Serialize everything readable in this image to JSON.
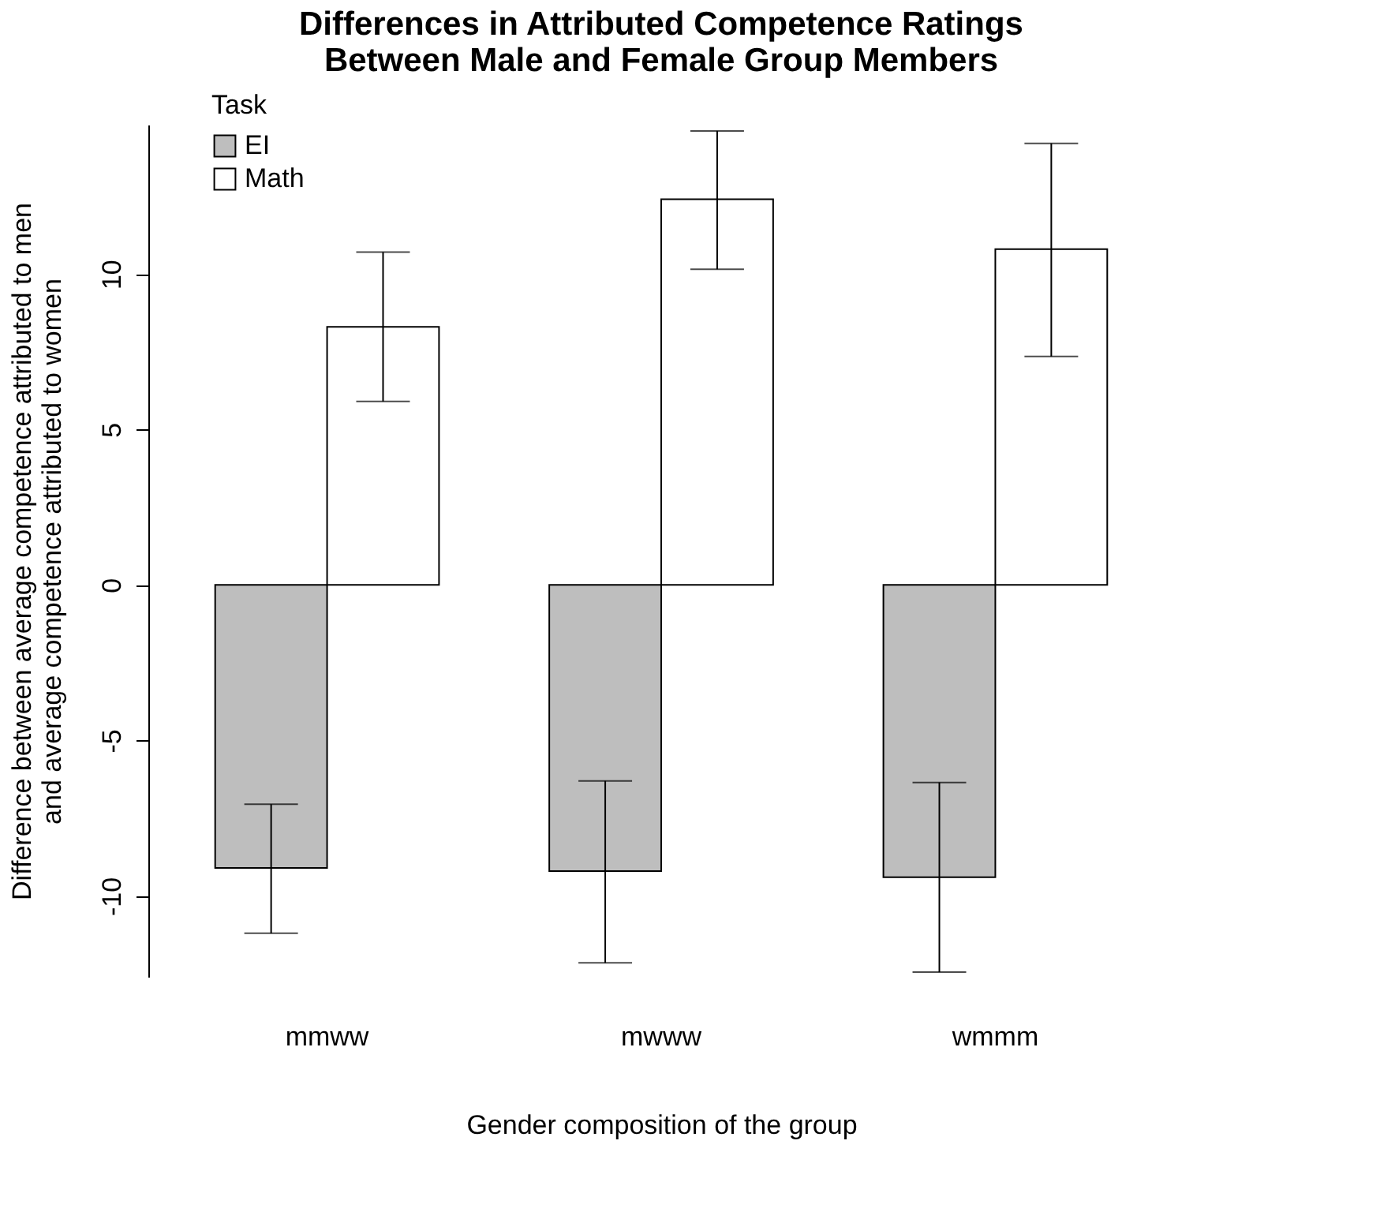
{
  "chart_data": {
    "type": "bar",
    "title": "Differences in Attributed Competence Ratings\nBetween Male and Female Group Members",
    "xlabel": "Gender composition of the group",
    "ylabel": "Difference between average competence attributed to men\nand average competence attributed to women",
    "legend_title": "Task",
    "legend": "top left",
    "grid": false,
    "categories": [
      "mmww",
      "mwww",
      "wmmm"
    ],
    "series": [
      {
        "name": "EI",
        "color": "#bebebe",
        "values": [
          -9.1,
          -9.2,
          -9.4
        ],
        "errors": [
          [
            -11.2,
            -7.05
          ],
          [
            -12.15,
            -6.3
          ],
          [
            -12.45,
            -6.35
          ]
        ]
      },
      {
        "name": "Math",
        "color": "#ffffff",
        "values": [
          8.3,
          12.4,
          10.8
        ],
        "errors": [
          [
            5.9,
            10.7
          ],
          [
            10.15,
            14.6
          ],
          [
            7.35,
            14.2
          ]
        ]
      }
    ],
    "ylim": [
      -12.6,
      14.8
    ],
    "yticks": [
      -10,
      -5,
      0,
      5,
      10
    ]
  }
}
